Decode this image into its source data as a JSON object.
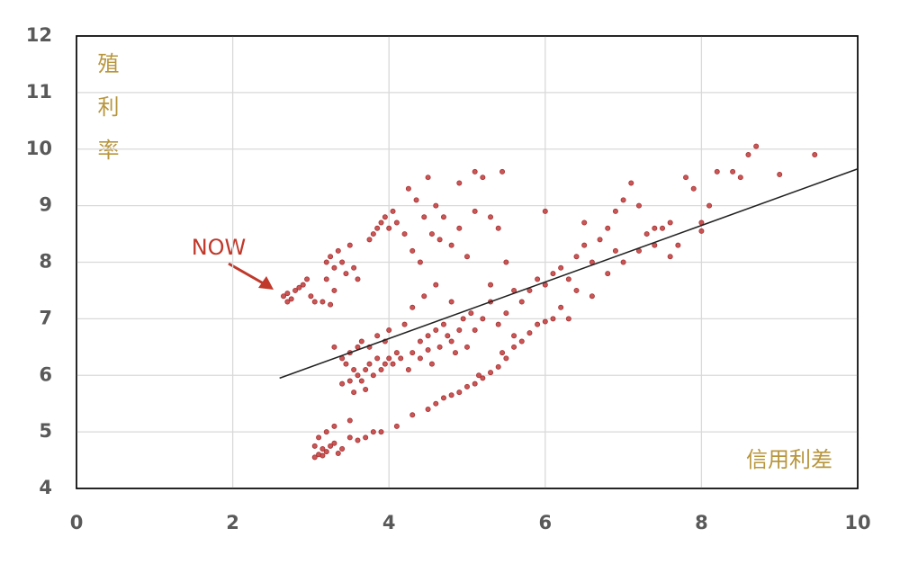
{
  "chart_data": {
    "type": "scatter",
    "y_label": "殖利率",
    "x_label": "信用利差",
    "annotation": "NOW",
    "color": "#c0393b",
    "grid": true,
    "xlim": [
      0,
      10
    ],
    "xticks": [
      0,
      2,
      4,
      6,
      8,
      10
    ],
    "ylim": [
      4,
      12
    ],
    "yticks": [
      4,
      5,
      6,
      7,
      8,
      9,
      10,
      11,
      12
    ],
    "trendline": {
      "x": [
        2.6,
        10
      ],
      "y": [
        5.95,
        9.65
      ]
    },
    "points": {
      "x": [
        2.65,
        2.7,
        2.75,
        2.8,
        2.9,
        2.95,
        3.0,
        3.05,
        2.7,
        2.85,
        3.2,
        3.25,
        3.3,
        3.35,
        3.4,
        3.45,
        3.5,
        3.2,
        3.3,
        3.55,
        3.6,
        3.25,
        3.15,
        3.8,
        3.85,
        3.9,
        3.95,
        4.0,
        4.05,
        4.1,
        3.75,
        4.2,
        4.3,
        4.35,
        4.5,
        4.6,
        4.7,
        4.8,
        4.9,
        5.0,
        5.1,
        5.2,
        5.3,
        5.45,
        4.4,
        5.5,
        4.55,
        4.25,
        5.1,
        4.65,
        4.45,
        4.9,
        5.4,
        3.05,
        3.1,
        3.15,
        3.2,
        3.25,
        3.3,
        3.4,
        3.5,
        3.6,
        3.7,
        3.8,
        3.9,
        3.1,
        3.2,
        3.3,
        3.5,
        3.05,
        3.15,
        3.35,
        4.1,
        4.3,
        4.5,
        4.7,
        4.8,
        4.9,
        5.0,
        5.1,
        5.2,
        5.3,
        5.4,
        5.5,
        5.6,
        5.7,
        5.8,
        5.9,
        6.0,
        4.6,
        5.15,
        5.45,
        3.3,
        3.4,
        3.5,
        3.6,
        3.45,
        3.5,
        3.55,
        3.6,
        3.65,
        3.7,
        3.75,
        3.8,
        3.85,
        3.9,
        3.95,
        4.0,
        4.05,
        4.1,
        4.15,
        3.65,
        3.75,
        3.85,
        3.95,
        4.0,
        4.2,
        4.3,
        4.4,
        4.5,
        4.6,
        4.65,
        4.7,
        4.75,
        4.8,
        4.85,
        4.9,
        4.95,
        5.0,
        5.05,
        5.1,
        5.2,
        5.3,
        5.4,
        5.5,
        5.6,
        5.7,
        4.4,
        4.55,
        4.3,
        4.45,
        4.6,
        4.8,
        5.3,
        3.4,
        3.55,
        3.7,
        4.25,
        4.5,
        5.6,
        5.8,
        5.9,
        6.0,
        6.1,
        6.2,
        6.3,
        6.4,
        6.5,
        6.6,
        6.7,
        6.8,
        6.9,
        7.0,
        7.1,
        7.2,
        7.3,
        7.4,
        7.5,
        7.6,
        7.7,
        7.8,
        7.9,
        8.0,
        8.1,
        8.2,
        8.4,
        8.5,
        8.6,
        8.7,
        9.0,
        9.45,
        6.0,
        6.2,
        6.4,
        6.6,
        6.8,
        7.0,
        7.2,
        7.4,
        6.1,
        6.3,
        6.5,
        6.9,
        7.6,
        8.0
      ],
      "y": [
        7.4,
        7.45,
        7.35,
        7.5,
        7.6,
        7.7,
        7.4,
        7.3,
        7.3,
        7.55,
        8.0,
        8.1,
        7.9,
        8.2,
        8.0,
        7.8,
        8.3,
        7.7,
        7.5,
        7.9,
        7.7,
        7.25,
        7.3,
        8.5,
        8.6,
        8.7,
        8.8,
        8.6,
        8.9,
        8.7,
        8.4,
        8.5,
        8.2,
        9.1,
        9.5,
        9.0,
        8.8,
        8.3,
        8.6,
        8.1,
        9.6,
        9.5,
        8.8,
        9.6,
        8.0,
        8.0,
        8.5,
        9.3,
        8.9,
        8.4,
        8.8,
        9.4,
        8.6,
        4.55,
        4.6,
        4.7,
        4.65,
        4.75,
        4.8,
        4.7,
        4.9,
        4.85,
        4.9,
        5.0,
        5.0,
        4.9,
        5.0,
        5.1,
        5.2,
        4.75,
        4.58,
        4.62,
        5.1,
        5.3,
        5.4,
        5.6,
        5.65,
        5.7,
        5.8,
        5.85,
        5.95,
        6.05,
        6.15,
        6.3,
        6.5,
        6.6,
        6.75,
        6.9,
        6.95,
        5.5,
        6.0,
        6.4,
        6.5,
        6.3,
        6.4,
        6.5,
        6.2,
        5.9,
        6.1,
        6.0,
        5.9,
        6.1,
        6.2,
        6.0,
        6.3,
        6.1,
        6.2,
        6.3,
        6.2,
        6.4,
        6.3,
        6.6,
        6.5,
        6.7,
        6.6,
        6.8,
        6.9,
        6.4,
        6.6,
        6.7,
        6.8,
        6.5,
        6.9,
        6.7,
        6.6,
        6.4,
        6.8,
        7.0,
        6.5,
        7.1,
        6.8,
        7.0,
        7.3,
        6.9,
        7.1,
        7.5,
        7.3,
        6.3,
        6.2,
        7.2,
        7.4,
        7.6,
        7.3,
        7.6,
        5.85,
        5.7,
        5.75,
        6.1,
        6.45,
        6.7,
        7.5,
        7.7,
        7.6,
        7.8,
        7.9,
        7.7,
        8.1,
        8.3,
        8.0,
        8.4,
        8.6,
        8.9,
        9.1,
        9.4,
        9.0,
        8.5,
        8.3,
        8.6,
        8.7,
        8.3,
        9.5,
        9.3,
        8.7,
        9.0,
        9.6,
        9.6,
        9.5,
        9.9,
        10.05,
        9.55,
        9.9,
        8.9,
        7.2,
        7.5,
        7.4,
        7.8,
        8.0,
        8.2,
        8.6,
        7.0,
        7.0,
        8.7,
        8.2,
        8.1,
        8.55
      ]
    }
  }
}
